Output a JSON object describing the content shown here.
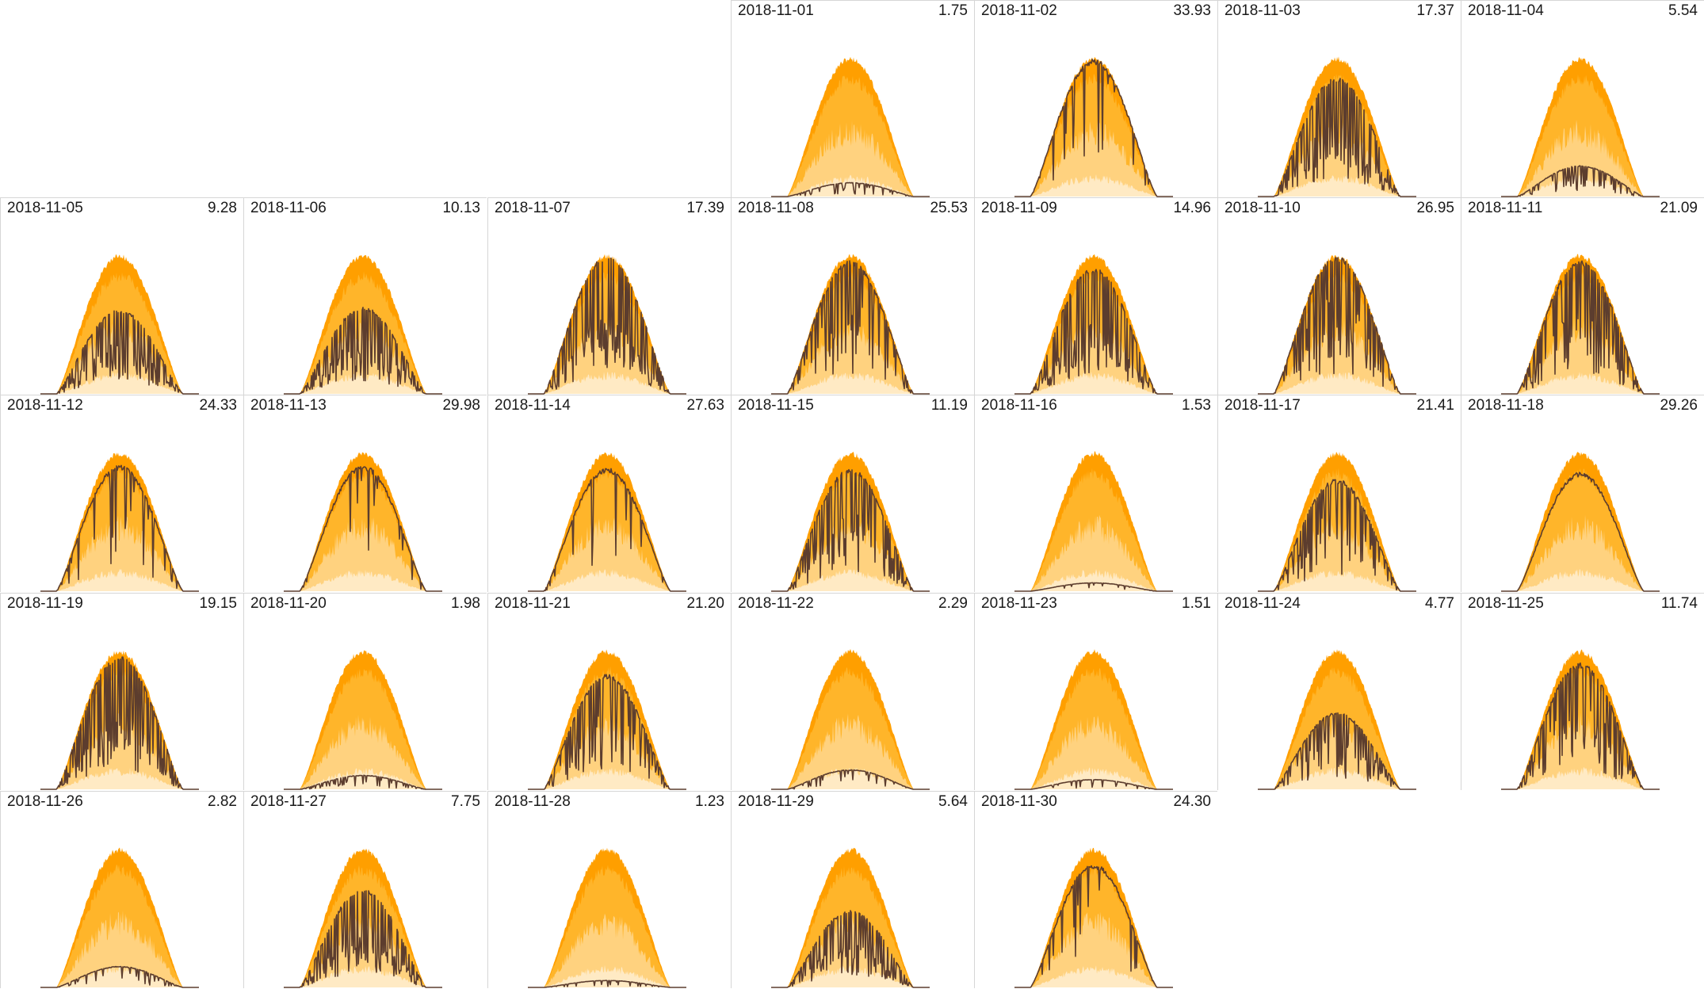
{
  "colors": {
    "band_outer": "#ff9f00",
    "band_upper": "#ffb52a",
    "band_mid": "#ffd27f",
    "band_low": "#ffeac4",
    "actual_line": "#5c3d2e",
    "grid_line": "#d6d6d6"
  },
  "chart_data": {
    "type": "area",
    "layout": "calendar small multiples, 7 columns, weeks starting Monday",
    "series_description": "daily generation curve overlaid on historical percentile bands",
    "days": [
      {
        "date": "2018-11-01",
        "total": "1.75",
        "peak": 0.1,
        "vol": 0.4
      },
      {
        "date": "2018-11-02",
        "total": "33.93",
        "peak": 0.98,
        "vol": 0.15
      },
      {
        "date": "2018-11-03",
        "total": "17.37",
        "peak": 0.85,
        "vol": 0.9
      },
      {
        "date": "2018-11-04",
        "total": "5.54",
        "peak": 0.22,
        "vol": 0.5
      },
      {
        "date": "2018-11-05",
        "total": "9.28",
        "peak": 0.6,
        "vol": 0.9
      },
      {
        "date": "2018-11-06",
        "total": "10.13",
        "peak": 0.62,
        "vol": 0.9
      },
      {
        "date": "2018-11-07",
        "total": "17.39",
        "peak": 0.98,
        "vol": 1.0
      },
      {
        "date": "2018-11-08",
        "total": "25.53",
        "peak": 0.95,
        "vol": 0.6
      },
      {
        "date": "2018-11-09",
        "total": "14.96",
        "peak": 0.9,
        "vol": 1.0
      },
      {
        "date": "2018-11-10",
        "total": "26.95",
        "peak": 0.98,
        "vol": 0.6
      },
      {
        "date": "2018-11-11",
        "total": "21.09",
        "peak": 0.95,
        "vol": 0.8
      },
      {
        "date": "2018-11-12",
        "total": "24.33",
        "peak": 0.9,
        "vol": 0.3
      },
      {
        "date": "2018-11-13",
        "total": "29.98",
        "peak": 0.9,
        "vol": 0.2
      },
      {
        "date": "2018-11-14",
        "total": "27.63",
        "peak": 0.88,
        "vol": 0.25
      },
      {
        "date": "2018-11-15",
        "total": "11.19",
        "peak": 0.88,
        "vol": 0.8
      },
      {
        "date": "2018-11-16",
        "total": "1.53",
        "peak": 0.06,
        "vol": 0.2
      },
      {
        "date": "2018-11-17",
        "total": "21.41",
        "peak": 0.8,
        "vol": 0.5
      },
      {
        "date": "2018-11-18",
        "total": "29.26",
        "peak": 0.85,
        "vol": 0.03
      },
      {
        "date": "2018-11-19",
        "total": "19.15",
        "peak": 0.95,
        "vol": 1.0
      },
      {
        "date": "2018-11-20",
        "total": "1.98",
        "peak": 0.1,
        "vol": 0.5
      },
      {
        "date": "2018-11-21",
        "total": "21.20",
        "peak": 0.82,
        "vol": 0.7
      },
      {
        "date": "2018-11-22",
        "total": "2.29",
        "peak": 0.14,
        "vol": 0.3
      },
      {
        "date": "2018-11-23",
        "total": "1.51",
        "peak": 0.07,
        "vol": 0.2
      },
      {
        "date": "2018-11-24",
        "total": "4.77",
        "peak": 0.55,
        "vol": 0.6
      },
      {
        "date": "2018-11-25",
        "total": "11.74",
        "peak": 0.9,
        "vol": 0.7
      },
      {
        "date": "2018-11-26",
        "total": "2.82",
        "peak": 0.15,
        "vol": 0.3
      },
      {
        "date": "2018-11-27",
        "total": "7.75",
        "peak": 0.7,
        "vol": 1.0
      },
      {
        "date": "2018-11-28",
        "total": "1.23",
        "peak": 0.05,
        "vol": 0.3
      },
      {
        "date": "2018-11-29",
        "total": "5.64",
        "peak": 0.55,
        "vol": 1.0
      },
      {
        "date": "2018-11-30",
        "total": "24.30",
        "peak": 0.88,
        "vol": 0.2
      }
    ]
  }
}
